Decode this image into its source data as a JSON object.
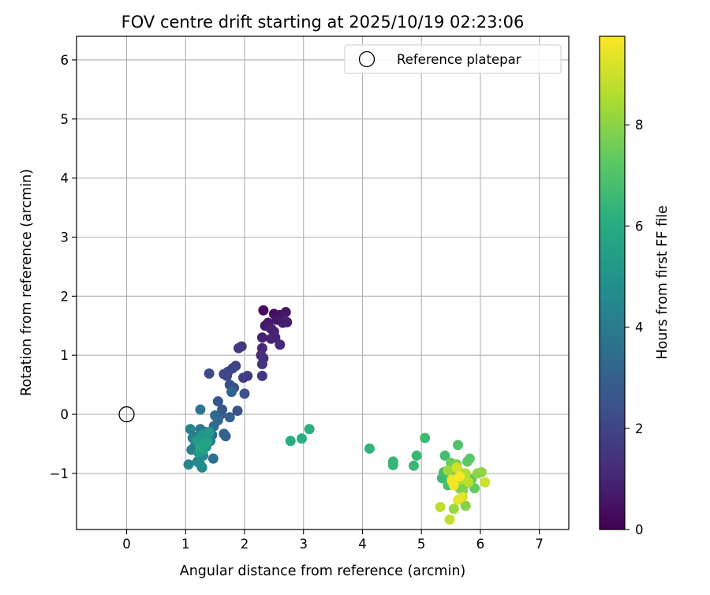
{
  "chart_data": {
    "type": "scatter",
    "title": "FOV centre drift starting at 2025/10/19 02:23:06",
    "xlabel": "Angular distance from reference (arcmin)",
    "ylabel": "Rotation from reference (arcmin)",
    "xlim": [
      -0.85,
      7.5
    ],
    "ylim": [
      -1.95,
      6.4
    ],
    "xticks": [
      0,
      1,
      2,
      3,
      4,
      5,
      6,
      7
    ],
    "xtick_labels": [
      "0",
      "1",
      "2",
      "3",
      "4",
      "5",
      "6",
      "7"
    ],
    "yticks": [
      -1,
      0,
      1,
      2,
      3,
      4,
      5,
      6
    ],
    "ytick_labels": [
      "−1",
      "0",
      "1",
      "2",
      "3",
      "4",
      "5",
      "6"
    ],
    "grid": true,
    "legend": {
      "position": "top-right",
      "entries": [
        {
          "label": "Reference platepar",
          "marker": "open-circle"
        }
      ]
    },
    "reference_point": {
      "x": 0,
      "y": 0
    },
    "colorbar": {
      "label": "Hours from first FF file",
      "range": [
        0,
        9.75
      ],
      "ticks": [
        0,
        2,
        4,
        6,
        8
      ],
      "tick_labels": [
        "0",
        "2",
        "4",
        "6",
        "8"
      ],
      "colormap": "viridis"
    },
    "points": [
      [
        2.32,
        1.76,
        0.3
      ],
      [
        2.5,
        1.7,
        0.4
      ],
      [
        2.6,
        1.68,
        0.5
      ],
      [
        2.7,
        1.73,
        0.6
      ],
      [
        2.55,
        1.6,
        0.6
      ],
      [
        2.4,
        1.55,
        0.7
      ],
      [
        2.35,
        1.5,
        0.7
      ],
      [
        2.65,
        1.55,
        0.8
      ],
      [
        2.72,
        1.56,
        0.8
      ],
      [
        2.45,
        1.45,
        0.9
      ],
      [
        2.5,
        1.4,
        0.9
      ],
      [
        2.3,
        1.3,
        0.9
      ],
      [
        2.45,
        1.28,
        1.0
      ],
      [
        2.52,
        1.3,
        1.0
      ],
      [
        2.6,
        1.18,
        1.1
      ],
      [
        2.3,
        1.12,
        1.1
      ],
      [
        2.28,
        1.0,
        1.2
      ],
      [
        2.32,
        0.95,
        1.3
      ],
      [
        2.3,
        0.85,
        1.4
      ],
      [
        2.3,
        0.65,
        1.5
      ],
      [
        1.9,
        1.12,
        1.6
      ],
      [
        1.95,
        1.15,
        1.6
      ],
      [
        2.05,
        0.65,
        1.7
      ],
      [
        1.98,
        0.62,
        1.8
      ],
      [
        1.85,
        0.82,
        1.9
      ],
      [
        1.8,
        0.78,
        2.0
      ],
      [
        1.72,
        0.72,
        2.0
      ],
      [
        1.65,
        0.68,
        2.1
      ],
      [
        1.7,
        0.65,
        2.1
      ],
      [
        1.4,
        0.69,
        2.2
      ],
      [
        1.75,
        0.5,
        2.3
      ],
      [
        1.82,
        0.45,
        2.4
      ],
      [
        2.0,
        0.35,
        2.4
      ],
      [
        1.88,
        0.06,
        2.5
      ],
      [
        1.55,
        0.22,
        2.6
      ],
      [
        1.62,
        0.08,
        2.7
      ],
      [
        1.6,
        0.0,
        2.8
      ],
      [
        1.75,
        -0.05,
        2.9
      ],
      [
        1.65,
        -0.33,
        3.0
      ],
      [
        1.68,
        -0.37,
        3.0
      ],
      [
        1.78,
        0.38,
        3.1
      ],
      [
        1.55,
        -0.1,
        3.2
      ],
      [
        1.5,
        -0.02,
        3.3
      ],
      [
        1.48,
        -0.2,
        3.4
      ],
      [
        1.45,
        -0.35,
        3.5
      ],
      [
        1.47,
        -0.75,
        3.6
      ],
      [
        1.35,
        -0.3,
        3.7
      ],
      [
        1.42,
        -0.45,
        3.7
      ],
      [
        1.25,
        0.08,
        3.8
      ],
      [
        1.25,
        -0.25,
        3.9
      ],
      [
        1.18,
        -0.38,
        4.0
      ],
      [
        1.15,
        -0.55,
        4.0
      ],
      [
        1.1,
        -0.6,
        4.1
      ],
      [
        1.12,
        -0.4,
        4.2
      ],
      [
        1.08,
        -0.25,
        4.3
      ],
      [
        1.05,
        -0.85,
        4.4
      ],
      [
        1.2,
        -0.8,
        4.5
      ],
      [
        1.28,
        -0.9,
        4.6
      ],
      [
        1.25,
        -0.85,
        4.7
      ],
      [
        1.3,
        -0.7,
        4.7
      ],
      [
        1.32,
        -0.5,
        4.8
      ],
      [
        1.35,
        -0.55,
        4.9
      ],
      [
        1.38,
        -0.45,
        5.0
      ],
      [
        1.28,
        -0.35,
        5.1
      ],
      [
        1.22,
        -0.65,
        5.2
      ],
      [
        1.4,
        -0.3,
        5.3
      ],
      [
        1.2,
        -0.45,
        5.4
      ],
      [
        1.3,
        -0.6,
        5.5
      ],
      [
        1.35,
        -0.48,
        5.6
      ],
      [
        1.25,
        -0.55,
        5.7
      ],
      [
        2.78,
        -0.45,
        6.0
      ],
      [
        2.97,
        -0.41,
        6.1
      ],
      [
        3.1,
        -0.25,
        6.2
      ],
      [
        4.12,
        -0.58,
        6.3
      ],
      [
        4.52,
        -0.8,
        6.4
      ],
      [
        4.52,
        -0.86,
        6.4
      ],
      [
        4.87,
        -0.87,
        6.5
      ],
      [
        4.92,
        -0.7,
        6.5
      ],
      [
        5.06,
        -0.4,
        6.6
      ],
      [
        5.35,
        -1.08,
        6.6
      ],
      [
        5.38,
        -0.98,
        6.7
      ],
      [
        5.4,
        -0.7,
        6.7
      ],
      [
        5.45,
        -1.2,
        6.8
      ],
      [
        5.5,
        -1.0,
        6.8
      ],
      [
        5.52,
        -1.15,
        6.9
      ],
      [
        5.55,
        -1.08,
        6.9
      ],
      [
        5.62,
        -0.52,
        7.0
      ],
      [
        5.58,
        -0.92,
        7.0
      ],
      [
        5.68,
        -1.05,
        7.1
      ],
      [
        5.72,
        -1.2,
        7.1
      ],
      [
        5.78,
        -0.8,
        7.2
      ],
      [
        5.82,
        -0.75,
        7.2
      ],
      [
        5.85,
        -1.1,
        7.3
      ],
      [
        5.9,
        -1.25,
        7.4
      ],
      [
        5.5,
        -0.82,
        7.5
      ],
      [
        5.6,
        -0.85,
        7.6
      ],
      [
        5.65,
        -1.25,
        7.7
      ],
      [
        5.7,
        -1.3,
        7.8
      ],
      [
        5.75,
        -1.55,
        7.9
      ],
      [
        5.95,
        -1.0,
        8.0
      ],
      [
        6.02,
        -0.98,
        8.1
      ],
      [
        5.55,
        -1.6,
        8.2
      ],
      [
        5.45,
        -0.95,
        8.3
      ],
      [
        5.62,
        -0.95,
        8.4
      ],
      [
        5.68,
        -1.1,
        8.5
      ],
      [
        5.75,
        -1.0,
        8.6
      ],
      [
        5.8,
        -1.15,
        8.7
      ],
      [
        5.32,
        -1.57,
        8.8
      ],
      [
        5.48,
        -1.78,
        8.9
      ],
      [
        6.08,
        -1.15,
        9.0
      ],
      [
        5.6,
        -0.9,
        9.1
      ],
      [
        5.52,
        -1.1,
        9.2
      ],
      [
        5.7,
        -1.4,
        9.3
      ],
      [
        5.62,
        -1.45,
        9.4
      ],
      [
        5.55,
        -1.2,
        9.5
      ],
      [
        5.52,
        -1.13,
        9.6
      ],
      [
        5.65,
        -1.05,
        9.7
      ]
    ]
  }
}
